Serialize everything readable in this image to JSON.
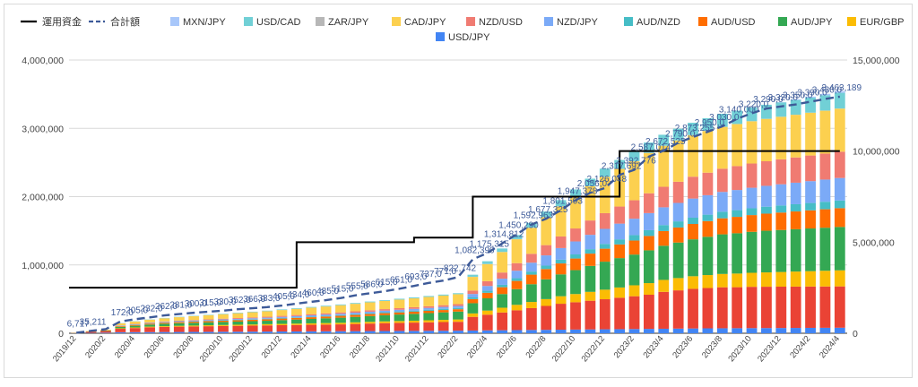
{
  "chart_data": {
    "type": "bar",
    "subtype": "stacked-bar-with-lines",
    "title": "",
    "xlabel": "",
    "ylabel": "",
    "ylim_left": [
      0,
      4000000
    ],
    "ylim_right": [
      0,
      15000000
    ],
    "left_ticks": [
      "0",
      "1,000,000",
      "2,000,000",
      "3,000,000",
      "4,000,000"
    ],
    "right_ticks": [
      "0",
      "5,000,000",
      "10,000,000",
      "15,000,000"
    ],
    "grid": true,
    "legend_position": "top",
    "categories": [
      "2019/12",
      "2020/1",
      "2020/2",
      "2020/3",
      "2020/4",
      "2020/5",
      "2020/6",
      "2020/7",
      "2020/8",
      "2020/9",
      "2020/10",
      "2020/11",
      "2020/12",
      "2021/1",
      "2021/2",
      "2021/3",
      "2021/4",
      "2021/5",
      "2021/6",
      "2021/7",
      "2021/8",
      "2021/9",
      "2021/10",
      "2021/11",
      "2021/12",
      "2022/1",
      "2022/2",
      "2022/3",
      "2022/4",
      "2022/5",
      "2022/6",
      "2022/7",
      "2022/8",
      "2022/9",
      "2022/10",
      "2022/11",
      "2022/12",
      "2023/1",
      "2023/2",
      "2023/3",
      "2023/4",
      "2023/5",
      "2023/6",
      "2023/7",
      "2023/8",
      "2023/9",
      "2023/10",
      "2023/11",
      "2023/12",
      "2024/1",
      "2024/2",
      "2024/3",
      "2024/4"
    ],
    "visible_x_labels": [
      "2019/12",
      "2020/2",
      "2020/4",
      "2020/6",
      "2020/8",
      "2020/10",
      "2020/12",
      "2021/2",
      "2021/4",
      "2021/6",
      "2021/8",
      "2021/10",
      "2021/12",
      "2022/2",
      "2022/4",
      "2022/6",
      "2022/8",
      "2022/10",
      "2022/12",
      "2023/2",
      "2023/4",
      "2023/6",
      "2023/8",
      "2023/10",
      "2023/12",
      "2024/2",
      "2024/4"
    ],
    "series": [
      {
        "name": "USD/JPY",
        "color": "#4285f4",
        "axis": "left",
        "values": [
          0,
          5000,
          8000,
          15000,
          16000,
          17000,
          18000,
          19000,
          20000,
          21000,
          22000,
          23000,
          24000,
          25000,
          26000,
          27000,
          28000,
          29000,
          30000,
          31000,
          32000,
          33000,
          34000,
          35000,
          36000,
          37000,
          38000,
          40000,
          42000,
          44000,
          46000,
          48000,
          50000,
          52000,
          54000,
          56000,
          58000,
          60000,
          62000,
          64000,
          66000,
          68000,
          70000,
          72000,
          73000,
          74000,
          75000,
          76000,
          77000,
          78000,
          79000,
          80000,
          81000
        ]
      },
      {
        "name": "EUR/JPY",
        "color": "#ea4335",
        "axis": "left",
        "values": [
          3000,
          15000,
          25000,
          50000,
          60000,
          70000,
          75000,
          78000,
          80000,
          82000,
          84000,
          86000,
          88000,
          90000,
          92000,
          94000,
          96000,
          98000,
          100000,
          105000,
          110000,
          115000,
          118000,
          121000,
          124000,
          127000,
          130000,
          200000,
          230000,
          260000,
          290000,
          320000,
          350000,
          380000,
          400000,
          420000,
          440000,
          460000,
          480000,
          500000,
          540000,
          560000,
          580000,
          590000,
          600000,
          600000,
          605000,
          605000,
          605000,
          605000,
          605000,
          605000,
          605000
        ]
      },
      {
        "name": "EUR/GBP",
        "color": "#fbbc04",
        "axis": "left",
        "values": [
          0,
          0,
          0,
          8000,
          9000,
          10000,
          11000,
          12000,
          13000,
          14000,
          15000,
          16000,
          17000,
          18000,
          19000,
          20000,
          21000,
          22000,
          23000,
          24000,
          25000,
          26000,
          27000,
          28000,
          30000,
          32000,
          34000,
          50000,
          60000,
          70000,
          80000,
          90000,
          100000,
          110000,
          120000,
          130000,
          140000,
          150000,
          160000,
          170000,
          175000,
          180000,
          185000,
          190000,
          195000,
          200000,
          205000,
          210000,
          215000,
          220000,
          225000,
          230000,
          235000
        ]
      },
      {
        "name": "AUD/JPY",
        "color": "#34a853",
        "axis": "left",
        "values": [
          1000,
          4000,
          6000,
          20000,
          25000,
          30000,
          35000,
          38000,
          40000,
          42000,
          44000,
          46000,
          48000,
          50000,
          55000,
          60000,
          65000,
          70000,
          75000,
          80000,
          85000,
          90000,
          95000,
          100000,
          105000,
          110000,
          115000,
          150000,
          180000,
          200000,
          230000,
          260000,
          290000,
          320000,
          350000,
          380000,
          410000,
          430000,
          450000,
          480000,
          500000,
          520000,
          540000,
          560000,
          580000,
          590000,
          600000,
          610000,
          615000,
          620000,
          625000,
          630000,
          635000
        ]
      },
      {
        "name": "AUD/USD",
        "color": "#ff6d01",
        "axis": "left",
        "values": [
          0,
          2000,
          3000,
          10000,
          12000,
          14000,
          15000,
          16000,
          17000,
          18000,
          19000,
          20000,
          21000,
          22000,
          23000,
          24000,
          25000,
          26000,
          27000,
          28000,
          29000,
          30000,
          31000,
          32000,
          33000,
          34000,
          35000,
          60000,
          80000,
          100000,
          120000,
          140000,
          150000,
          160000,
          170000,
          180000,
          190000,
          200000,
          205000,
          210000,
          215000,
          220000,
          225000,
          230000,
          235000,
          240000,
          245000,
          250000,
          255000,
          260000,
          265000,
          270000,
          275000
        ]
      },
      {
        "name": "AUD/NZD",
        "color": "#46bdc6",
        "axis": "left",
        "values": [
          0,
          0,
          0,
          3000,
          3500,
          4000,
          4500,
          5000,
          5500,
          6000,
          6500,
          7000,
          7500,
          8000,
          8500,
          9000,
          9500,
          10000,
          11000,
          12000,
          13000,
          14000,
          15000,
          16000,
          17000,
          18000,
          19000,
          25000,
          30000,
          35000,
          40000,
          45000,
          50000,
          55000,
          60000,
          65000,
          70000,
          75000,
          80000,
          85000,
          88000,
          90000,
          92000,
          94000,
          96000,
          98000,
          100000,
          102000,
          104000,
          106000,
          108000,
          110000,
          112000
        ]
      },
      {
        "name": "NZD/JPY",
        "color": "#7baaf7",
        "axis": "left",
        "values": [
          0,
          0,
          0,
          5000,
          6000,
          7000,
          8000,
          9000,
          10000,
          11000,
          12000,
          13000,
          14000,
          15000,
          16000,
          17000,
          18000,
          19000,
          20000,
          21000,
          22000,
          23000,
          24000,
          25000,
          26000,
          27000,
          28000,
          50000,
          70000,
          90000,
          110000,
          130000,
          150000,
          170000,
          190000,
          210000,
          220000,
          230000,
          240000,
          250000,
          260000,
          270000,
          280000,
          285000,
          290000,
          295000,
          300000,
          305000,
          310000,
          315000,
          320000,
          325000,
          330000
        ]
      },
      {
        "name": "NZD/USD",
        "color": "#f07b72",
        "axis": "left",
        "values": [
          0,
          0,
          0,
          4000,
          5000,
          6000,
          7000,
          8000,
          9000,
          10000,
          11000,
          12000,
          13000,
          14000,
          15000,
          16000,
          17000,
          18000,
          19000,
          20000,
          21000,
          22000,
          23000,
          24000,
          25000,
          26000,
          27000,
          50000,
          70000,
          90000,
          110000,
          130000,
          150000,
          170000,
          190000,
          210000,
          230000,
          250000,
          270000,
          290000,
          300000,
          310000,
          320000,
          330000,
          340000,
          350000,
          355000,
          360000,
          365000,
          370000,
          375000,
          380000,
          385000
        ]
      },
      {
        "name": "CAD/JPY",
        "color": "#fcd04f",
        "axis": "left",
        "values": [
          2717,
          5211,
          10000,
          30000,
          35000,
          40000,
          45000,
          50000,
          55000,
          60000,
          65000,
          70000,
          75000,
          80000,
          85000,
          90000,
          95000,
          100000,
          105000,
          110000,
          115000,
          120000,
          125000,
          130000,
          135000,
          140000,
          145000,
          200000,
          250000,
          300000,
          350000,
          380000,
          410000,
          440000,
          470000,
          500000,
          530000,
          550000,
          570000,
          590000,
          600000,
          605000,
          608000,
          610000,
          612000,
          615000,
          618000,
          620000,
          622000,
          624000,
          626000,
          628000,
          630000
        ]
      },
      {
        "name": "ZAR/JPY",
        "color": "#b7b7b7",
        "axis": "left",
        "values": [
          0,
          0,
          0,
          1000,
          1000,
          1000,
          1000,
          1000,
          1000,
          1000,
          1000,
          1000,
          1000,
          1000,
          1000,
          1000,
          1000,
          1000,
          1000,
          1000,
          1000,
          1000,
          1000,
          1000,
          1000,
          1000,
          1000,
          2000,
          2000,
          2000,
          2000,
          2000,
          2000,
          2000,
          2000,
          2000,
          2000,
          2000,
          2000,
          2000,
          2000,
          2000,
          2000,
          2000,
          2000,
          2000,
          2000,
          2000,
          2000,
          2000,
          2000,
          2000,
          2000
        ]
      },
      {
        "name": "USD/CAD",
        "color": "#71d0d6",
        "axis": "left",
        "values": [
          0,
          0,
          0,
          3000,
          3500,
          4000,
          4500,
          5000,
          5500,
          6000,
          6500,
          7000,
          7500,
          8000,
          8500,
          9000,
          9500,
          10000,
          10500,
          11000,
          11500,
          12000,
          12500,
          13000,
          13500,
          14000,
          14500,
          30000,
          40000,
          50000,
          60000,
          70000,
          80000,
          90000,
          100000,
          110000,
          120000,
          130000,
          140000,
          150000,
          160000,
          170000,
          180000,
          185000,
          190000,
          195000,
          200000,
          205000,
          210000,
          215000,
          220000,
          225000,
          230000
        ]
      },
      {
        "name": "MXN/JPY",
        "color": "#a8c7fa",
        "axis": "left",
        "values": [
          0,
          0,
          0,
          0,
          0,
          0,
          0,
          0,
          0,
          0,
          0,
          0,
          0,
          0,
          0,
          0,
          0,
          0,
          0,
          0,
          0,
          0,
          0,
          0,
          0,
          0,
          0,
          0,
          0,
          0,
          0,
          0,
          0,
          0,
          0,
          0,
          0,
          0,
          0,
          0,
          0,
          0,
          0,
          0,
          0,
          0,
          0,
          0,
          5000,
          10000,
          15000,
          20000,
          25000
        ]
      },
      {
        "name": "運用資金",
        "color": "#000000",
        "axis": "right",
        "line": "solid",
        "values": [
          2500000,
          2500000,
          2500000,
          2500000,
          2500000,
          2500000,
          2500000,
          2500000,
          2500000,
          2500000,
          2500000,
          2500000,
          2500000,
          2500000,
          2500000,
          5000000,
          5000000,
          5000000,
          5000000,
          5000000,
          5000000,
          5000000,
          5000000,
          5250000,
          5250000,
          5250000,
          5250000,
          7500000,
          7500000,
          7500000,
          7500000,
          7500000,
          7500000,
          7500000,
          7500000,
          7500000,
          7500000,
          10000000,
          10000000,
          10000000,
          10000000,
          10000000,
          10000000,
          10000000,
          10000000,
          10000000,
          10000000,
          10000000,
          10000000,
          10000000,
          10000000,
          10000000,
          10000000
        ]
      },
      {
        "name": "合計額",
        "color": "#3d5a98",
        "axis": "left",
        "line": "dashed",
        "values": [
          6717,
          35211,
          60000,
          172000,
          205000,
          232000,
          262000,
          281000,
          300000,
          315000,
          330000,
          352000,
          366000,
          383000,
          405000,
          434000,
          460000,
          485000,
          515000,
          555000,
          586000,
          615000,
          651000,
          693000,
          737000,
          771000,
          822742,
          1082390,
          1175315,
          1314812,
          1450290,
          1592963,
          1677325,
          1801503,
          1947378,
          2056000,
          2126048,
          2317692,
          2392776,
          2587014,
          2672525,
          2790000,
          2873255,
          2950000,
          3030000,
          3140000,
          3220000,
          3290000,
          3320000,
          3350000,
          3390000,
          3430000,
          3463189
        ]
      }
    ],
    "total_labels": [
      "6,717",
      "35,211",
      "",
      "172,0",
      "205,0",
      "232,0",
      "262,0",
      "281,0",
      "300,0",
      "315,0",
      "330,0",
      "352,0",
      "366,0",
      "383,0",
      "405,0",
      "434,0",
      "460,0",
      "485,0",
      "515,0",
      "555,0",
      "586,0",
      "615,0",
      "651,0",
      "693,0",
      "737,0",
      "771,0",
      "822,742",
      "1,082,390",
      "1,175,315",
      "1,314,812",
      "1,450,290",
      "1,592,963",
      "1,677,325",
      "1,801,503",
      "1,947,378",
      "2,056,0",
      "2,126,048",
      "2,317,692",
      "2,392,776",
      "2,587,014",
      "2,672,525",
      "2,790,0",
      "2,873,255",
      "2,950,0",
      "3,030,0",
      "3,140,000",
      "3,220,0",
      "3,290,0",
      "3,320,0",
      "3,350,0",
      "3,390,0",
      "3,430,0",
      "3,463,189"
    ]
  }
}
